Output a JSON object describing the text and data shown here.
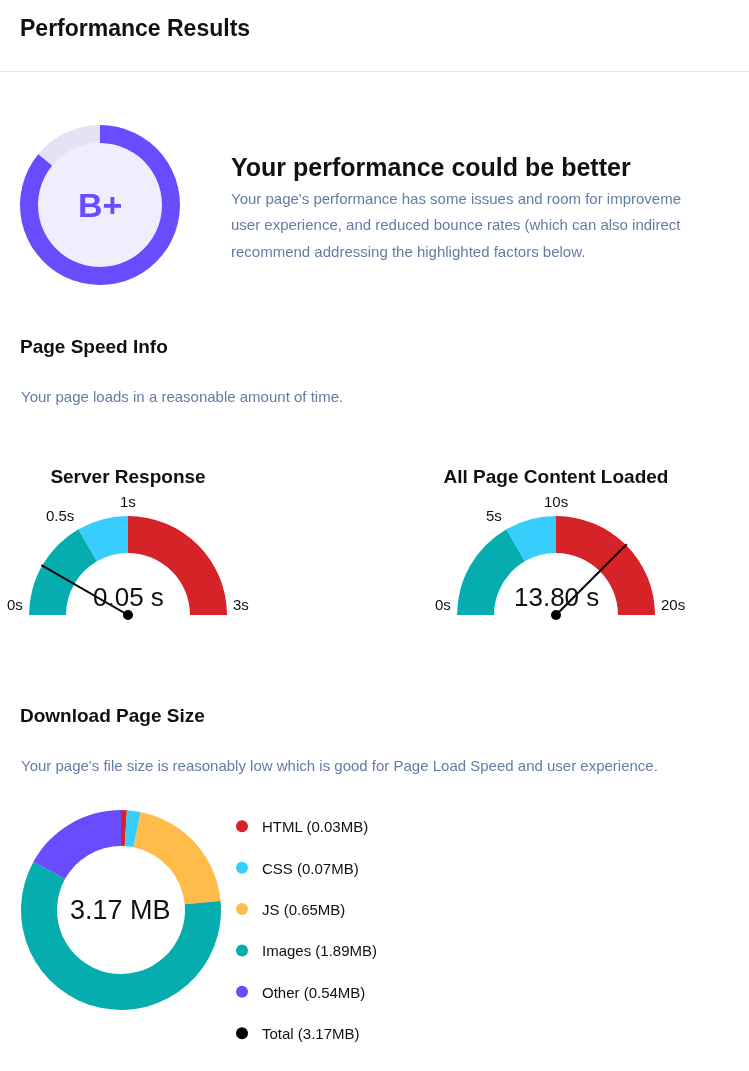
{
  "chart_data": [
    {
      "type": "other",
      "title": "Performance Results"
    },
    {
      "type": "donut",
      "title": "Your performance could be better",
      "subtitle": "Your page's performance has some issues and room for improveme\nuser experience, and reduced bounce rates (which can also indirect\nrecommend addressing the highlighted factors below.",
      "categories": [
        null,
        null
      ],
      "values": [
        86,
        14
      ],
      "colors": [
        "#6a4cff",
        "#e5e2f6"
      ],
      "annotations": [
        "B+"
      ]
    },
    {
      "type": "other",
      "title": "Page Speed Info",
      "subtitle": "Your page loads in a reasonable amount of time."
    },
    {
      "type": "donut",
      "title": "Server Response",
      "categories": [
        "0s",
        "0.5s",
        "1s"
      ],
      "values": [
        33.3,
        16.7,
        50
      ],
      "colors": [
        "#05adae",
        "#38cdfc",
        "#d62328"
      ],
      "needle": "0s",
      "annotations": [
        "3s",
        "0.05 s"
      ]
    },
    {
      "type": "donut",
      "title": "All Page Content Loaded",
      "categories": [
        "0s",
        "5s",
        "10s"
      ],
      "values": [
        33.3,
        16.7,
        50
      ],
      "colors": [
        "#05adae",
        "#38cdfc",
        "#d62328"
      ],
      "needle": "10s",
      "annotations": [
        "20s",
        "13.80 s"
      ]
    },
    {
      "type": "donut",
      "title": "Download Page Size",
      "subtitle": "Your page's file size is reasonably low which is good for Page Load Speed and user experience.",
      "categories": [
        "HTML (0.03MB)",
        "CSS (0.07MB)",
        "JS (0.65MB)",
        "Images (1.89MB)",
        "Other (0.54MB)",
        "Total (3.17MB)"
      ],
      "values": [
        0.03,
        0.07,
        0.65,
        1.89,
        0.54,
        null
      ],
      "colors": [
        "#d62328",
        "#38cdfc",
        "#ffbc4b",
        "#05adae",
        "#6a4cff",
        "#000000"
      ],
      "legend": "right",
      "annotations": [
        "3.17 MB"
      ]
    }
  ]
}
